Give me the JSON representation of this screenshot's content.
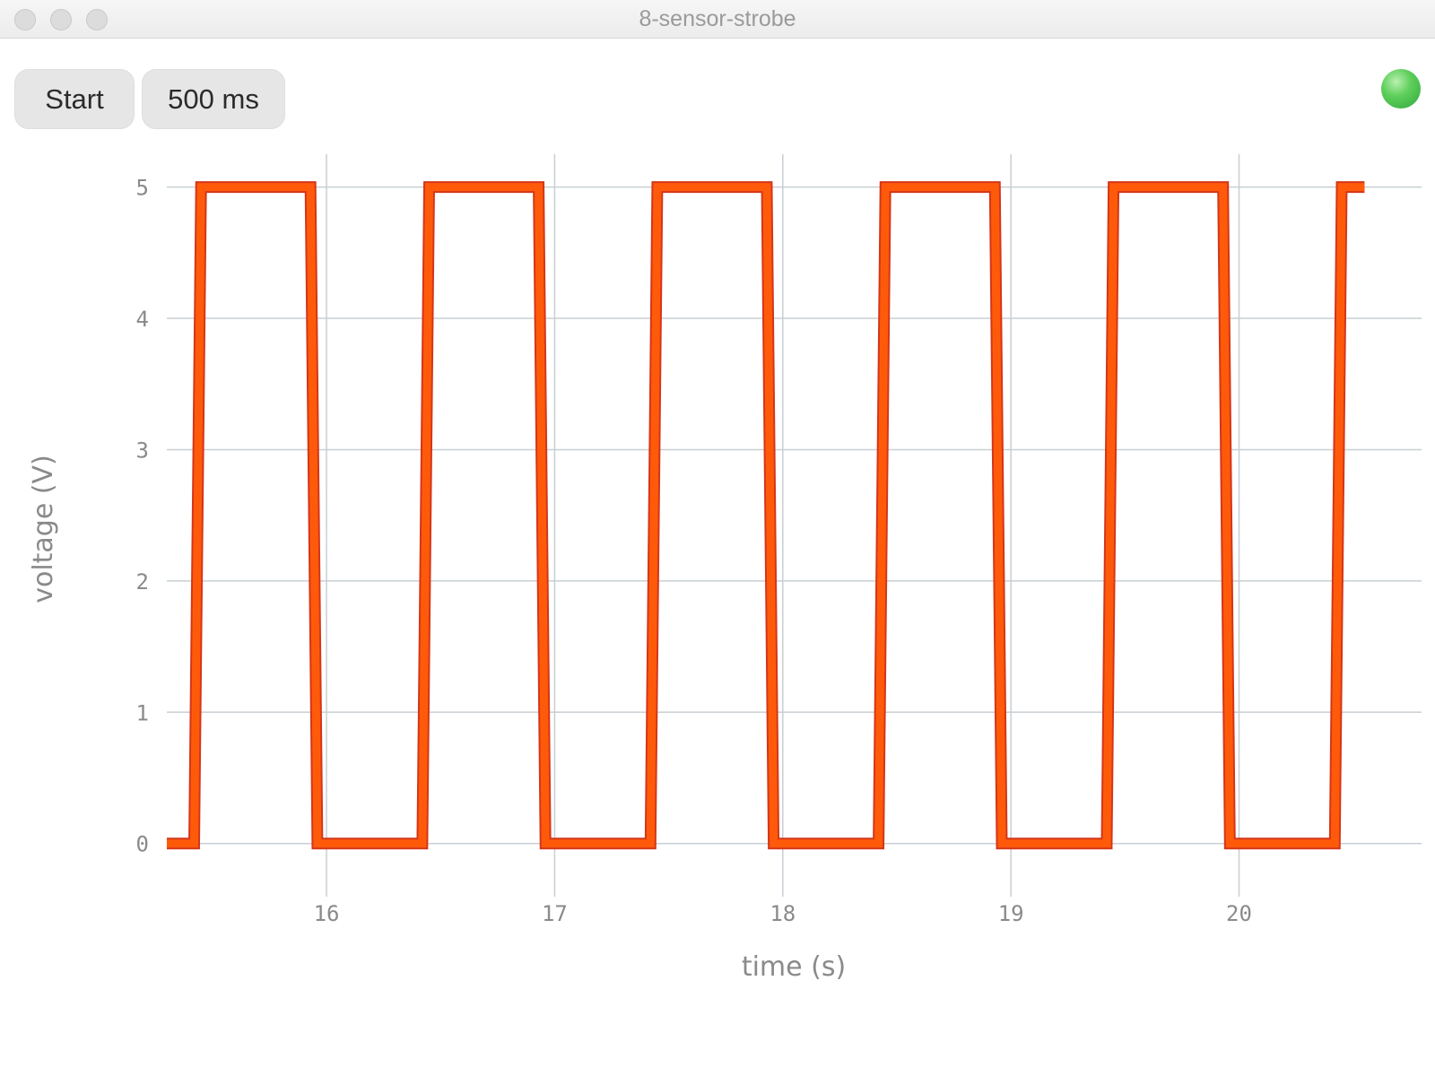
{
  "window": {
    "title": "8-sensor-strobe"
  },
  "toolbar": {
    "start_label": "Start",
    "interval_label": "500 ms"
  },
  "status": {
    "led_color": "#3cbf45",
    "icon": "status-led"
  },
  "chart_data": {
    "type": "line",
    "title": "",
    "xlabel": "time (s)",
    "ylabel": "voltage (V)",
    "xlim": [
      15.3,
      20.8
    ],
    "ylim": [
      -0.2,
      5.25
    ],
    "xticks": [
      16,
      17,
      18,
      19,
      20
    ],
    "yticks": [
      0,
      1,
      2,
      3,
      4,
      5
    ],
    "grid": true,
    "line_color": "#ff5a0a",
    "series": [
      {
        "name": "",
        "x": [
          15.3,
          15.42,
          15.45,
          15.93,
          15.96,
          16.42,
          16.45,
          16.93,
          16.96,
          17.42,
          17.45,
          17.93,
          17.96,
          18.42,
          18.45,
          18.93,
          18.96,
          19.42,
          19.45,
          19.93,
          19.96,
          20.42,
          20.45,
          20.55
        ],
        "y": [
          0,
          0,
          5,
          5,
          0,
          0,
          5,
          5,
          0,
          0,
          5,
          5,
          0,
          0,
          5,
          5,
          0,
          0,
          5,
          5,
          0,
          0,
          5,
          5
        ]
      }
    ]
  }
}
